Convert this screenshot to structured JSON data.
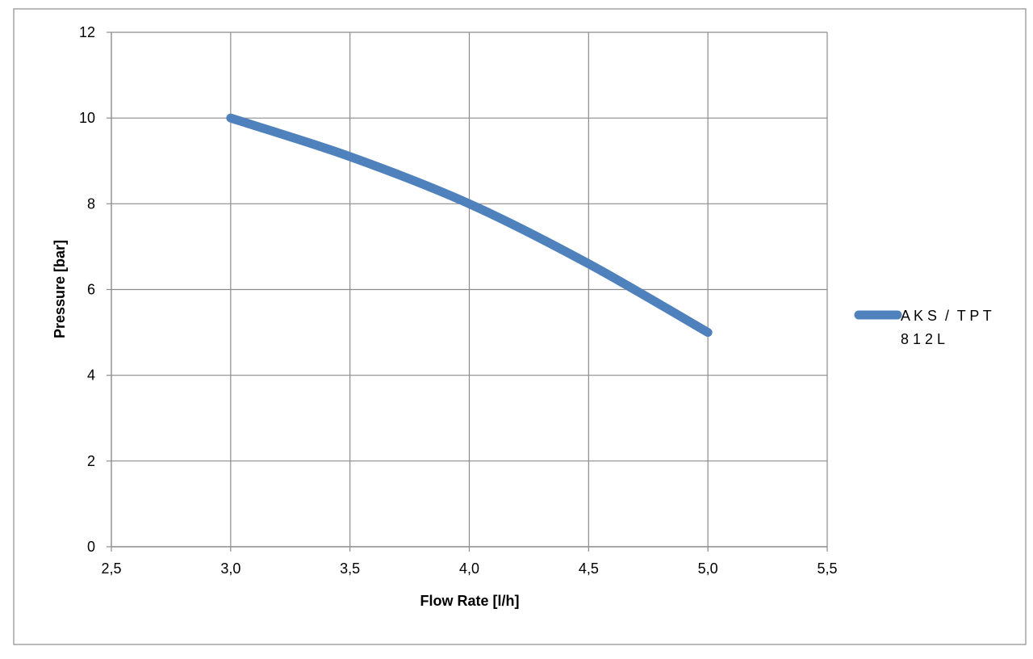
{
  "chart_data": {
    "type": "line",
    "xlabel": "Flow Rate [l/h]",
    "ylabel": "Pressure [bar]",
    "xlim": [
      2.5,
      5.5
    ],
    "ylim": [
      0,
      12
    ],
    "x_ticks": [
      2.5,
      3.0,
      3.5,
      4.0,
      4.5,
      5.0,
      5.5
    ],
    "x_tick_labels": [
      "2,5",
      "3,0",
      "3,5",
      "4,0",
      "4,5",
      "5,0",
      "5,5"
    ],
    "y_ticks": [
      0,
      2,
      4,
      6,
      8,
      10,
      12
    ],
    "y_tick_labels": [
      "0",
      "2",
      "4",
      "6",
      "8",
      "10",
      "12"
    ],
    "grid": true,
    "legend_position": "right",
    "series": [
      {
        "name": "AKS / TPT 812L",
        "legend_lines": [
          "A K S  /  T P T",
          "8 1 2 L"
        ],
        "color": "#4f81bd",
        "x": [
          3.0,
          3.5,
          4.0,
          4.5,
          5.0
        ],
        "y": [
          10.0,
          9.1,
          8.0,
          6.6,
          5.0
        ]
      }
    ]
  }
}
